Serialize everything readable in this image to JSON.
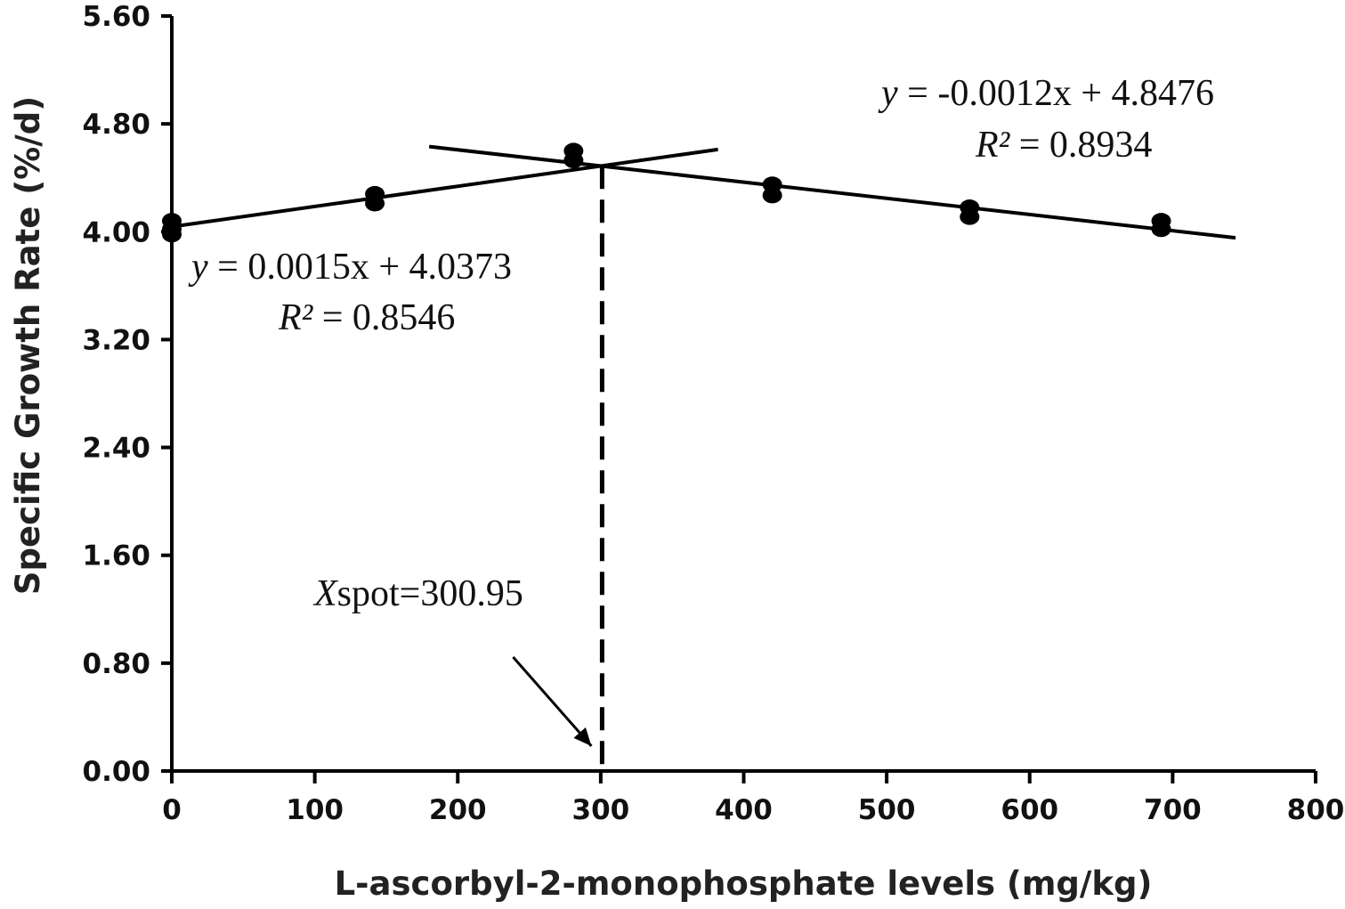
{
  "chart_data": {
    "type": "scatter",
    "title": "",
    "xlabel": "L-ascorbyl-2-monophosphate levels (mg/kg)",
    "ylabel": "Specific Growth Rate (%/d)",
    "xlim": [
      0,
      800
    ],
    "ylim": [
      0,
      5.6
    ],
    "x_ticks": [
      "0",
      "100",
      "200",
      "300",
      "400",
      "500",
      "600",
      "700",
      "800"
    ],
    "y_ticks": [
      "0.00",
      "0.80",
      "1.60",
      "2.40",
      "3.20",
      "4.00",
      "4.80",
      "5.60"
    ],
    "grid": false,
    "points": [
      {
        "x": 0,
        "y": 4.08
      },
      {
        "x": 0,
        "y": 4.02
      },
      {
        "x": 0,
        "y": 3.98
      },
      {
        "x": 142,
        "y": 4.28
      },
      {
        "x": 142,
        "y": 4.21
      },
      {
        "x": 281,
        "y": 4.6
      },
      {
        "x": 281,
        "y": 4.53
      },
      {
        "x": 420,
        "y": 4.35
      },
      {
        "x": 420,
        "y": 4.27
      },
      {
        "x": 558,
        "y": 4.18
      },
      {
        "x": 558,
        "y": 4.11
      },
      {
        "x": 692,
        "y": 4.08
      },
      {
        "x": 692,
        "y": 4.02
      }
    ],
    "fit_lines": [
      {
        "slope": 0.0015,
        "intercept": 4.0373,
        "x_range": [
          0,
          382
        ]
      },
      {
        "slope": -0.0012,
        "intercept": 4.8476,
        "x_range": [
          180,
          744
        ]
      }
    ],
    "equations": [
      {
        "y_part": "y",
        "rest": " = 0.0015x + 4.0373",
        "r2_part": "R²",
        "r2_rest": " = 0.8546"
      },
      {
        "y_part": "y",
        "rest": " = -0.0012x + 4.8476",
        "r2_part": "R²",
        "r2_rest": " = 0.8934"
      }
    ],
    "breakpoint": {
      "x": 300.95,
      "label_italic": "X",
      "label_rest": "spot=300.95"
    }
  }
}
